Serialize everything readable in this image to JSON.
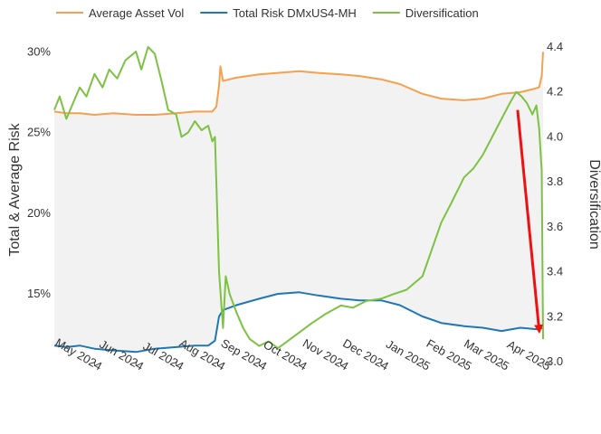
{
  "chart_data": {
    "type": "line",
    "title": "",
    "xlabel": "",
    "ylabel": "Total & Average Risk",
    "y2label": "Diversification",
    "x_ticks": [
      {
        "date": "2024-05-01",
        "label": "May 2024"
      },
      {
        "date": "2024-06-01",
        "label": "Jun 2024"
      },
      {
        "date": "2024-07-01",
        "label": "Jul 2024"
      },
      {
        "date": "2024-08-01",
        "label": "Aug 2024"
      },
      {
        "date": "2024-09-01",
        "label": "Sep 2024"
      },
      {
        "date": "2024-10-01",
        "label": "Oct 2024"
      },
      {
        "date": "2024-11-01",
        "label": "Nov 2024"
      },
      {
        "date": "2024-12-01",
        "label": "Dec 2024"
      },
      {
        "date": "2025-01-01",
        "label": "Jan 2025"
      },
      {
        "date": "2025-02-01",
        "label": "Feb 2025"
      },
      {
        "date": "2025-03-01",
        "label": "Mar 2025"
      },
      {
        "date": "2025-04-01",
        "label": "Apr 2025"
      }
    ],
    "xlim": [
      "2024-04-01",
      "2025-04-01"
    ],
    "ylim": [
      10.8,
      30.3
    ],
    "y_ticks": [
      {
        "value": 15,
        "label": "15%"
      },
      {
        "value": 20,
        "label": "20%"
      },
      {
        "value": 25,
        "label": "25%"
      },
      {
        "value": 30,
        "label": "30%"
      }
    ],
    "y2lim": [
      3.0,
      4.4
    ],
    "y2_ticks": [
      {
        "value": 3.0,
        "label": "3.0"
      },
      {
        "value": 3.2,
        "label": "3.2"
      },
      {
        "value": 3.4,
        "label": "3.4"
      },
      {
        "value": 3.6,
        "label": "3.6"
      },
      {
        "value": 3.8,
        "label": "3.8"
      },
      {
        "value": 4.0,
        "label": "4.0"
      },
      {
        "value": 4.2,
        "label": "4.2"
      },
      {
        "value": 4.4,
        "label": "4.4"
      }
    ],
    "grid": false,
    "legend_position": "top",
    "fill_between_series": [
      "Average Asset Vol",
      "Total Risk DMxUS4-MH"
    ],
    "fill_color": "#f2f2f2",
    "series": [
      {
        "name": "Average Asset Vol",
        "color": "#f5a04e",
        "axis": "left",
        "points": [
          [
            "2024-04-01",
            26.3
          ],
          [
            "2024-04-10",
            26.2
          ],
          [
            "2024-04-20",
            26.2
          ],
          [
            "2024-05-01",
            26.1
          ],
          [
            "2024-05-15",
            26.2
          ],
          [
            "2024-06-01",
            26.1
          ],
          [
            "2024-06-15",
            26.1
          ],
          [
            "2024-07-01",
            26.2
          ],
          [
            "2024-07-15",
            26.3
          ],
          [
            "2024-07-28",
            26.3
          ],
          [
            "2024-07-31",
            26.6
          ],
          [
            "2024-08-02",
            27.9
          ],
          [
            "2024-08-03",
            29.1
          ],
          [
            "2024-08-05",
            28.2
          ],
          [
            "2024-08-15",
            28.4
          ],
          [
            "2024-09-01",
            28.6
          ],
          [
            "2024-09-15",
            28.7
          ],
          [
            "2024-10-01",
            28.8
          ],
          [
            "2024-10-15",
            28.7
          ],
          [
            "2024-11-01",
            28.6
          ],
          [
            "2024-11-15",
            28.5
          ],
          [
            "2024-12-01",
            28.3
          ],
          [
            "2024-12-15",
            28.0
          ],
          [
            "2025-01-01",
            27.4
          ],
          [
            "2025-01-15",
            27.1
          ],
          [
            "2025-02-01",
            27.0
          ],
          [
            "2025-02-15",
            27.1
          ],
          [
            "2025-03-01",
            27.4
          ],
          [
            "2025-03-15",
            27.5
          ],
          [
            "2025-03-25",
            27.7
          ],
          [
            "2025-03-29",
            27.8
          ],
          [
            "2025-03-31",
            28.5
          ],
          [
            "2025-04-01",
            30.0
          ]
        ]
      },
      {
        "name": "Total Risk DMxUS4-MH",
        "color": "#1f77b4",
        "axis": "left",
        "points": [
          [
            "2024-04-01",
            11.8
          ],
          [
            "2024-04-10",
            11.7
          ],
          [
            "2024-04-20",
            11.8
          ],
          [
            "2024-05-01",
            11.6
          ],
          [
            "2024-05-15",
            11.5
          ],
          [
            "2024-06-01",
            11.4
          ],
          [
            "2024-06-15",
            11.6
          ],
          [
            "2024-07-01",
            11.7
          ],
          [
            "2024-07-15",
            11.8
          ],
          [
            "2024-07-25",
            11.8
          ],
          [
            "2024-07-30",
            12.1
          ],
          [
            "2024-08-02",
            13.6
          ],
          [
            "2024-08-05",
            14.0
          ],
          [
            "2024-08-15",
            14.3
          ],
          [
            "2024-09-01",
            14.7
          ],
          [
            "2024-09-15",
            15.0
          ],
          [
            "2024-10-01",
            15.1
          ],
          [
            "2024-10-15",
            14.9
          ],
          [
            "2024-11-01",
            14.7
          ],
          [
            "2024-11-15",
            14.6
          ],
          [
            "2024-12-01",
            14.6
          ],
          [
            "2024-12-15",
            14.3
          ],
          [
            "2025-01-01",
            13.6
          ],
          [
            "2025-01-15",
            13.2
          ],
          [
            "2025-02-01",
            13.0
          ],
          [
            "2025-02-15",
            12.9
          ],
          [
            "2025-03-01",
            12.7
          ],
          [
            "2025-03-15",
            12.9
          ],
          [
            "2025-03-28",
            12.8
          ],
          [
            "2025-04-01",
            12.9
          ]
        ]
      },
      {
        "name": "Diversification",
        "color": "#7dc243",
        "axis": "right",
        "points": [
          [
            "2024-04-01",
            4.12
          ],
          [
            "2024-04-05",
            4.18
          ],
          [
            "2024-04-10",
            4.08
          ],
          [
            "2024-04-15",
            4.15
          ],
          [
            "2024-04-20",
            4.22
          ],
          [
            "2024-04-25",
            4.18
          ],
          [
            "2024-05-01",
            4.28
          ],
          [
            "2024-05-07",
            4.22
          ],
          [
            "2024-05-12",
            4.3
          ],
          [
            "2024-05-18",
            4.26
          ],
          [
            "2024-05-24",
            4.34
          ],
          [
            "2024-06-01",
            4.38
          ],
          [
            "2024-06-05",
            4.3
          ],
          [
            "2024-06-10",
            4.4
          ],
          [
            "2024-06-15",
            4.37
          ],
          [
            "2024-06-20",
            4.25
          ],
          [
            "2024-06-25",
            4.12
          ],
          [
            "2024-07-01",
            4.1
          ],
          [
            "2024-07-05",
            4.0
          ],
          [
            "2024-07-10",
            4.02
          ],
          [
            "2024-07-15",
            4.07
          ],
          [
            "2024-07-20",
            4.03
          ],
          [
            "2024-07-25",
            4.05
          ],
          [
            "2024-07-28",
            3.98
          ],
          [
            "2024-07-30",
            4.0
          ],
          [
            "2024-08-02",
            3.4
          ],
          [
            "2024-08-05",
            3.15
          ],
          [
            "2024-08-07",
            3.38
          ],
          [
            "2024-08-10",
            3.3
          ],
          [
            "2024-08-15",
            3.22
          ],
          [
            "2024-08-20",
            3.15
          ],
          [
            "2024-08-25",
            3.1
          ],
          [
            "2024-09-01",
            3.07
          ],
          [
            "2024-09-08",
            3.09
          ],
          [
            "2024-09-15",
            3.06
          ],
          [
            "2024-09-22",
            3.09
          ],
          [
            "2024-10-01",
            3.13
          ],
          [
            "2024-10-10",
            3.17
          ],
          [
            "2024-10-20",
            3.21
          ],
          [
            "2024-11-01",
            3.25
          ],
          [
            "2024-11-10",
            3.24
          ],
          [
            "2024-11-20",
            3.27
          ],
          [
            "2024-12-01",
            3.28
          ],
          [
            "2024-12-10",
            3.3
          ],
          [
            "2024-12-20",
            3.32
          ],
          [
            "2025-01-01",
            3.38
          ],
          [
            "2025-01-08",
            3.5
          ],
          [
            "2025-01-15",
            3.62
          ],
          [
            "2025-01-22",
            3.7
          ],
          [
            "2025-02-01",
            3.82
          ],
          [
            "2025-02-08",
            3.86
          ],
          [
            "2025-02-15",
            3.92
          ],
          [
            "2025-02-22",
            4.0
          ],
          [
            "2025-03-01",
            4.08
          ],
          [
            "2025-03-08",
            4.16
          ],
          [
            "2025-03-12",
            4.2
          ],
          [
            "2025-03-16",
            4.18
          ],
          [
            "2025-03-20",
            4.15
          ],
          [
            "2025-03-24",
            4.1
          ],
          [
            "2025-03-27",
            4.14
          ],
          [
            "2025-03-29",
            4.04
          ],
          [
            "2025-03-31",
            3.85
          ],
          [
            "2025-04-01",
            3.1
          ]
        ]
      }
    ],
    "annotations": [
      {
        "type": "arrow",
        "color": "#ee1111",
        "from": [
          "2025-03-13",
          4.12
        ],
        "to": [
          "2025-03-29",
          3.12
        ],
        "axis": "right"
      }
    ]
  }
}
